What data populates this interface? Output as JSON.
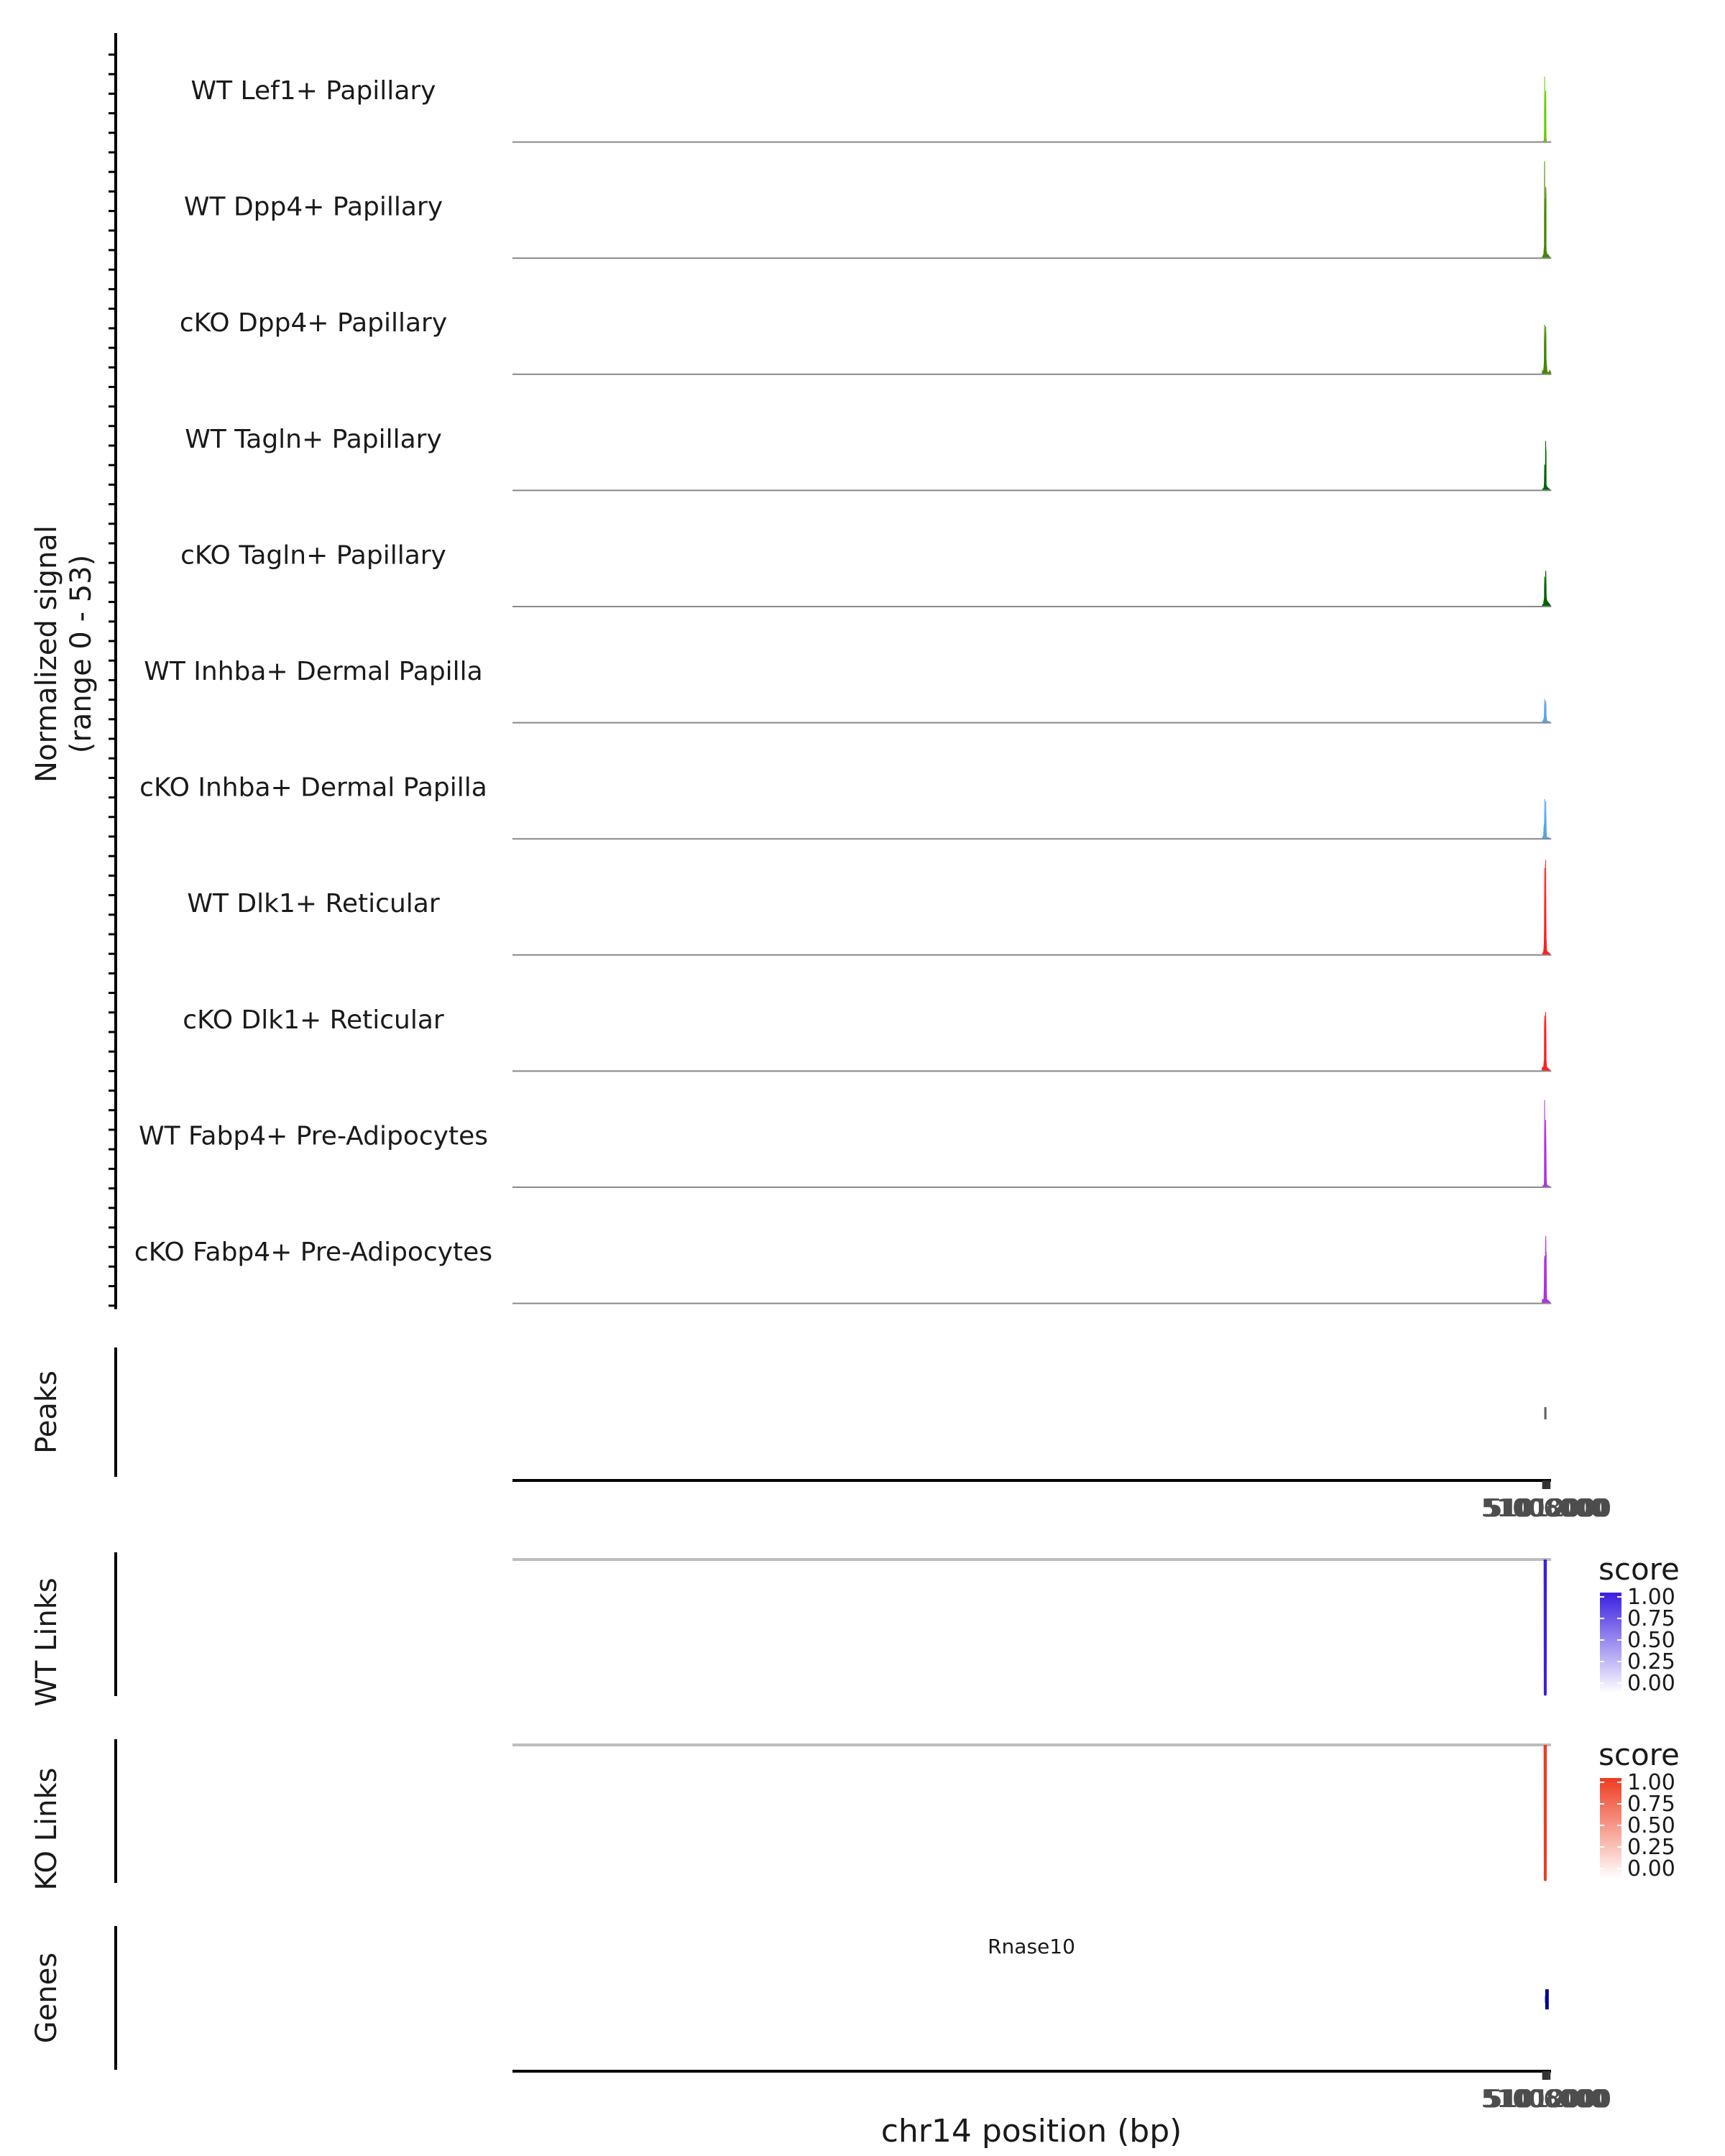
{
  "chart_data": {
    "type": "area",
    "title": "",
    "region": "chr14",
    "xlabel": "chr14 position (bp)",
    "xlim": [
      50004800,
      51013600
    ],
    "x_ticks": [
      51006000,
      51008000,
      51010000,
      51012000
    ],
    "x_tick_labels": [
      "51006000",
      "51008000",
      "51010000",
      "51012000"
    ],
    "coverage": {
      "ylabel": "Normalized signal",
      "ylabel_range": "(range 0 - 53)",
      "ylim": [
        0,
        53
      ],
      "tracks": [
        {
          "name": "WT Lef1+ Papillary",
          "color": "#66cc00",
          "x": [
            51004800,
            51006600,
            51007000,
            51007150,
            51007350,
            51007550,
            51007800,
            51008050,
            51008300,
            51008500,
            51008700,
            51009100,
            51009800,
            51013600
          ],
          "y": [
            0,
            0.5,
            1,
            6,
            33,
            16,
            2,
            3,
            24,
            26,
            3,
            0.5,
            0,
            0
          ]
        },
        {
          "name": "WT Dpp4+ Papillary",
          "color": "#448800",
          "x": [
            51004800,
            51005600,
            51006500,
            51006900,
            51007100,
            51007180,
            51007350,
            51007450,
            51007650,
            51007800,
            51008050,
            51008250,
            51008350,
            51008500,
            51008700,
            51008800,
            51009200,
            51009900,
            51010500,
            51011600,
            51013600
          ],
          "y": [
            0,
            1,
            2,
            5,
            6,
            26,
            49,
            24,
            11,
            2,
            4,
            30,
            27,
            36,
            32,
            4,
            3,
            1,
            2,
            1,
            0
          ]
        },
        {
          "name": "cKO Dpp4+ Papillary",
          "color": "#448800",
          "x": [
            51004800,
            51005300,
            51006000,
            51006600,
            51007000,
            51007150,
            51007350,
            51007600,
            51007900,
            51008150,
            51008300,
            51008450,
            51008650,
            51008800,
            51009100,
            51009800,
            51011500,
            51012600,
            51013600
          ],
          "y": [
            0,
            2,
            1,
            3,
            6,
            22,
            25,
            14,
            6,
            8,
            19,
            24,
            20,
            8,
            5,
            1,
            1,
            2,
            0
          ]
        },
        {
          "name": "WT Tagln+ Papillary",
          "color": "#006400",
          "x": [
            51004800,
            51006000,
            51006500,
            51006900,
            51007100,
            51007400,
            51007600,
            51007850,
            51008050,
            51008300,
            51008500,
            51008700,
            51008850,
            51009300,
            51011100,
            51013600
          ],
          "y": [
            0,
            1,
            1,
            2,
            4,
            13,
            12,
            4,
            6,
            25,
            21,
            20,
            3,
            2,
            1,
            0
          ]
        },
        {
          "name": "cKO Tagln+ Papillary",
          "color": "#006400",
          "x": [
            51004800,
            51005400,
            51006200,
            51006700,
            51007100,
            51007300,
            51007500,
            51007750,
            51008050,
            51008300,
            51008500,
            51008700,
            51008900,
            51009500,
            51012500,
            51013600
          ],
          "y": [
            0,
            1,
            1,
            3,
            4,
            15,
            9,
            6,
            4,
            17,
            18,
            13,
            5,
            3,
            1,
            0
          ]
        },
        {
          "name": "WT Inhba+ Dermal Papilla",
          "color": "#55a5e8",
          "x": [
            51004800,
            51005800,
            51006600,
            51007050,
            51007300,
            51007500,
            51007800,
            51008050,
            51008250,
            51008450,
            51008650,
            51008850,
            51009500,
            51013600
          ],
          "y": [
            0,
            1,
            2,
            3,
            12,
            5,
            2,
            3,
            9,
            11,
            9,
            3,
            1,
            0
          ]
        },
        {
          "name": "cKO Inhba+ Dermal Papilla",
          "color": "#55a5e8",
          "x": [
            51004800,
            51006400,
            51006700,
            51007000,
            51007250,
            51007350,
            51007550,
            51007850,
            51008150,
            51008300,
            51008450,
            51008650,
            51008900,
            51009100,
            51013600
          ],
          "y": [
            0,
            2,
            6,
            7,
            8,
            20,
            7,
            9,
            5,
            13,
            19,
            12,
            4,
            1,
            0
          ]
        },
        {
          "name": "WT Dlk1+ Reticular",
          "color": "#ff2020",
          "x": [
            51004800,
            51005800,
            51006500,
            51007000,
            51007150,
            51007350,
            51007450,
            51007650,
            51007900,
            51008150,
            51008300,
            51008450,
            51008600,
            51008850,
            51009300,
            51013600
          ],
          "y": [
            0,
            1,
            2,
            6,
            15,
            44,
            30,
            8,
            4,
            6,
            48,
            42,
            24,
            8,
            2,
            0
          ]
        },
        {
          "name": "cKO Dlk1+ Reticular",
          "color": "#ff2020",
          "x": [
            51004800,
            51005300,
            51006400,
            51006900,
            51007100,
            51007200,
            51007400,
            51007650,
            51007950,
            51008150,
            51008300,
            51008450,
            51008650,
            51008850,
            51009300,
            51013600
          ],
          "y": [
            0,
            2,
            2,
            5,
            6,
            24,
            28,
            12,
            5,
            10,
            30,
            28,
            20,
            5,
            2,
            0
          ]
        },
        {
          "name": "WT Fabp4+ Pre-Adipocytes",
          "color": "#b030e8",
          "x": [
            51004800,
            51006200,
            51006800,
            51007100,
            51007250,
            51007350,
            51007550,
            51007750,
            51007900,
            51008100,
            51008300,
            51008500,
            51008700,
            51008900,
            51009150,
            51009700,
            51013600
          ],
          "y": [
            0,
            1,
            1,
            3,
            30,
            44,
            20,
            8,
            3,
            10,
            34,
            26,
            20,
            6,
            2,
            1,
            0
          ]
        },
        {
          "name": "cKO Fabp4+ Pre-Adipocytes",
          "color": "#b030e8",
          "x": [
            51004800,
            51005300,
            51006600,
            51007000,
            51007200,
            51007450,
            51007650,
            51007850,
            51008000,
            51008150,
            51008300,
            51008500,
            51008700,
            51008850,
            51009150,
            51009400,
            51011800,
            51013600
          ],
          "y": [
            0,
            2,
            2,
            8,
            22,
            24,
            12,
            17,
            8,
            20,
            30,
            34,
            18,
            26,
            6,
            2,
            1,
            0
          ]
        }
      ]
    },
    "peaks": {
      "label": "Peaks",
      "intervals": [
        [
          51007000,
          51009150
        ]
      ],
      "color": "#606060"
    },
    "links": [
      {
        "label": "WT Links",
        "color": "#3b1fe0",
        "arcs": [
          {
            "start": 51007770,
            "end": 51008120,
            "score": 1.0
          }
        ],
        "legend": {
          "title": "score",
          "ticks": [
            "1.00",
            "0.75",
            "0.50",
            "0.25",
            "0.00"
          ]
        }
      },
      {
        "label": "KO Links",
        "color": "#ee3b20",
        "arcs": [
          {
            "start": 51007770,
            "end": 51008120,
            "score": 1.0
          }
        ],
        "legend": {
          "title": "score",
          "ticks": [
            "1.00",
            "0.75",
            "0.50",
            "0.25",
            "0.00"
          ]
        }
      }
    ],
    "genes": {
      "label": "Genes",
      "color": "#00008b",
      "items": [
        {
          "name": "Rnase10",
          "start": 51007770,
          "end": 51010780,
          "strand": "+",
          "exons": [
            [
              51007770,
              51007830
            ],
            [
              51007940,
              51008060
            ],
            [
              51009260,
              51010780
            ]
          ]
        }
      ]
    }
  }
}
